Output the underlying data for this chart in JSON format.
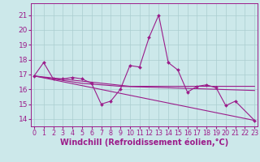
{
  "x": [
    0,
    1,
    2,
    3,
    4,
    5,
    6,
    7,
    8,
    9,
    10,
    11,
    12,
    13,
    14,
    15,
    16,
    17,
    18,
    19,
    20,
    21,
    22,
    23
  ],
  "scatter_x": [
    0,
    1,
    2,
    3,
    4,
    5,
    6,
    7,
    8,
    9,
    10,
    11,
    12,
    13,
    14,
    15,
    16,
    17,
    18,
    19,
    20,
    21,
    23
  ],
  "scatter_y": [
    16.9,
    17.8,
    16.7,
    16.7,
    16.8,
    16.7,
    16.4,
    15.0,
    15.2,
    16.0,
    17.6,
    17.5,
    19.5,
    21.0,
    17.8,
    17.3,
    15.8,
    16.2,
    16.3,
    16.1,
    14.9,
    15.2,
    13.9
  ],
  "line2_x": [
    0,
    23
  ],
  "line2_y": [
    16.9,
    13.9
  ],
  "line3": [
    16.9,
    16.83,
    16.76,
    16.69,
    16.62,
    16.55,
    16.48,
    16.41,
    16.34,
    16.27,
    16.2,
    16.2,
    16.2,
    16.2,
    16.2,
    16.2,
    16.2,
    16.2,
    16.2,
    16.2,
    16.2,
    16.2,
    16.2,
    16.2
  ],
  "line4": [
    16.9,
    16.8,
    16.7,
    16.6,
    16.5,
    16.4,
    16.35,
    16.3,
    16.25,
    16.2,
    16.18,
    16.16,
    16.14,
    16.12,
    16.1,
    16.08,
    16.06,
    16.04,
    16.02,
    16.0,
    15.98,
    15.96,
    15.94,
    15.92
  ],
  "line_color": "#9b1c8a",
  "bg_color": "#cce8ea",
  "grid_color": "#aacdd0",
  "text_color": "#9b1c8a",
  "ylabel_ticks": [
    14,
    15,
    16,
    17,
    18,
    19,
    20,
    21
  ],
  "xlabel_ticks": [
    0,
    1,
    2,
    3,
    4,
    5,
    6,
    7,
    8,
    9,
    10,
    11,
    12,
    13,
    14,
    15,
    16,
    17,
    18,
    19,
    20,
    21,
    22,
    23
  ],
  "ylim": [
    13.5,
    21.8
  ],
  "xlim": [
    -0.3,
    23.3
  ],
  "xlabel": "Windchill (Refroidissement éolien,°C)",
  "xlabel_fontsize": 7,
  "tick_fontsize": 6.5,
  "xtick_fontsize": 5.8
}
